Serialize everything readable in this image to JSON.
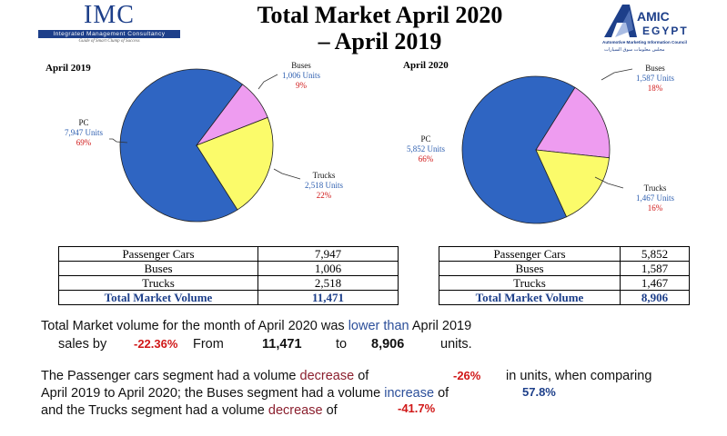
{
  "header": {
    "imc_logo": {
      "name": "IMC",
      "subtitle": "Integrated Management Consultancy",
      "tagline": "Guide of Smart Clump of Success"
    },
    "title_line1": "Total Market April 2020",
    "title_line2": "– April 2019",
    "amic_logo": {
      "line1": "AMIC",
      "line2": "EGYPT",
      "tagline": "Automotive Marketing Information Council",
      "arabic": "مجلس معلومات سوق السيارات"
    }
  },
  "chart_data": [
    {
      "type": "pie",
      "title": "April 2019",
      "slices": [
        {
          "name": "PC",
          "units_label": "7,947 Units",
          "pct_label": "69%",
          "value": 7947,
          "color": "#2f65c2"
        },
        {
          "name": "Buses",
          "units_label": "1,006 Units",
          "pct_label": "9%",
          "value": 1006,
          "color": "#ee9cf0"
        },
        {
          "name": "Trucks",
          "units_label": "2,518 Units",
          "pct_label": "22%",
          "value": 2518,
          "color": "#fbfb6a"
        }
      ]
    },
    {
      "type": "pie",
      "title": "April 2020",
      "slices": [
        {
          "name": "PC",
          "units_label": "5,852 Units",
          "pct_label": "66%",
          "value": 5852,
          "color": "#2f65c2"
        },
        {
          "name": "Buses",
          "units_label": "1,587 Units",
          "pct_label": "18%",
          "value": 1587,
          "color": "#ee9cf0"
        },
        {
          "name": "Trucks",
          "units_label": "1,467 Units",
          "pct_label": "16%",
          "value": 1467,
          "color": "#fbfb6a"
        }
      ]
    }
  ],
  "tables": {
    "april_2019": [
      {
        "label": "Passenger Cars",
        "value": "7,947"
      },
      {
        "label": "Buses",
        "value": "1,006"
      },
      {
        "label": "Trucks",
        "value": "2,518"
      },
      {
        "label": "Total Market Volume",
        "value": "11,471"
      }
    ],
    "april_2020": [
      {
        "label": "Passenger Cars",
        "value": "5,852"
      },
      {
        "label": "Buses",
        "value": "1,587"
      },
      {
        "label": "Trucks",
        "value": "1,467"
      },
      {
        "label": "Total Market Volume",
        "value": "8,906"
      }
    ]
  },
  "summary": {
    "p1_a": "Total Market volume for the month of April 2020 was",
    "p1_b": "lower than",
    "p1_c": "April 2019",
    "p1_d": "sales by",
    "p1_pct": "-22.36%",
    "p1_from": "From",
    "p1_v1": "11,471",
    "p1_to": "to",
    "p1_v2": "8,906",
    "p1_units": "units.",
    "p2_a": "The Passenger cars segment had a volume",
    "p2_dec": "decrease",
    "p2_of": "of",
    "p2_pc_pct": "-26%",
    "p2_b": "in units, when comparing",
    "p2_c": "April 2019 to April 2020; the Buses segment had a volume",
    "p2_inc": "increase",
    "p2_of2": "of",
    "p2_bus_pct": "57.8%",
    "p2_d": "and the Trucks segment had a volume",
    "p2_dec2": "decrease",
    "p2_of3": "of",
    "p2_truck_pct": "-41.7%"
  }
}
